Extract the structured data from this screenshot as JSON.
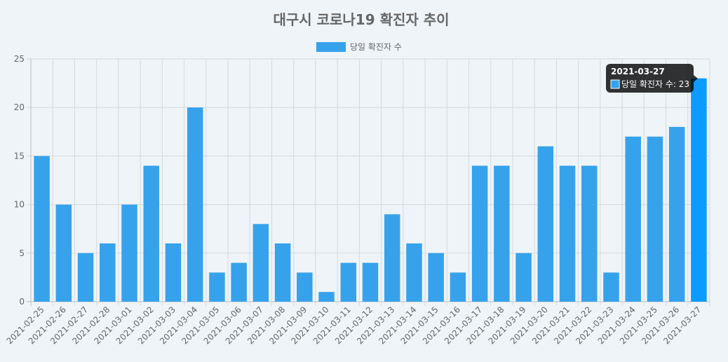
{
  "chart_data": {
    "type": "bar",
    "title": "대구시 코로나19 확진자 추이",
    "categories": [
      "2021-02-25",
      "2021-02-26",
      "2021-02-27",
      "2021-02-28",
      "2021-03-01",
      "2021-03-02",
      "2021-03-03",
      "2021-03-04",
      "2021-03-05",
      "2021-03-06",
      "2021-03-07",
      "2021-03-08",
      "2021-03-09",
      "2021-03-10",
      "2021-03-11",
      "2021-03-12",
      "2021-03-13",
      "2021-03-14",
      "2021-03-15",
      "2021-03-16",
      "2021-03-17",
      "2021-03-18",
      "2021-03-19",
      "2021-03-20",
      "2021-03-21",
      "2021-03-22",
      "2021-03-23",
      "2021-03-24",
      "2021-03-25",
      "2021-03-26",
      "2021-03-27"
    ],
    "series": [
      {
        "name": "당일 확진자 수",
        "color": "#36a2eb",
        "values": [
          15,
          10,
          5,
          6,
          10,
          14,
          6,
          20,
          3,
          4,
          8,
          6,
          3,
          1,
          4,
          4,
          9,
          6,
          5,
          3,
          14,
          14,
          5,
          16,
          14,
          14,
          3,
          17,
          17,
          18,
          23
        ]
      }
    ],
    "xlabel": "",
    "ylabel": "",
    "ylim": [
      0,
      25
    ],
    "yticks": [
      0,
      5,
      10,
      15,
      20,
      25
    ],
    "grid": true,
    "legend_position": "top",
    "tooltip": {
      "title": "2021-03-27",
      "label": "당일 확진자 수: 23",
      "active_index": 30,
      "active_color": "#0d9bff"
    }
  }
}
